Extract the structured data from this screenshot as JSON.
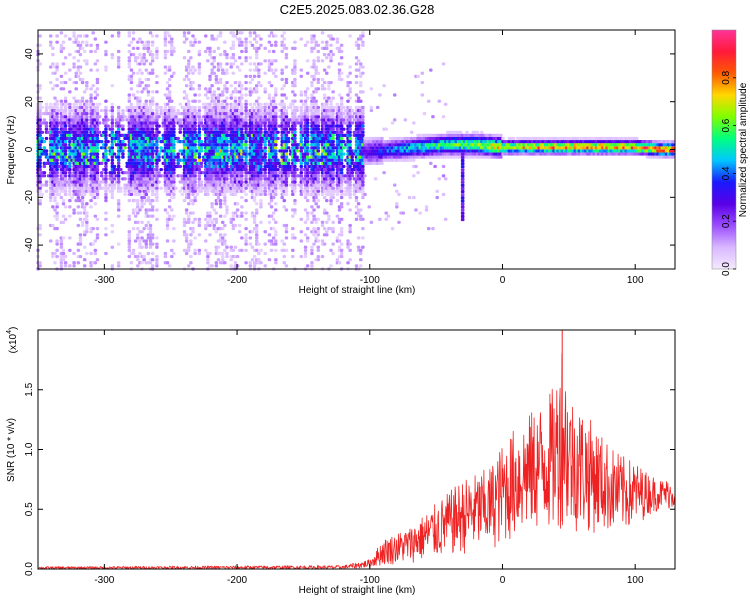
{
  "title": "C2E5.2025.083.02.36.G28",
  "chart_data": [
    {
      "type": "heatmap",
      "xlabel": "Height of straight line (km)",
      "ylabel": "Frequency (Hz)",
      "xlim": [
        -350,
        130
      ],
      "ylim": [
        -50,
        50
      ],
      "xticks": [
        -300,
        -200,
        -100,
        0,
        100
      ],
      "yticks": [
        -40,
        -20,
        0,
        20,
        40
      ],
      "colorbar": {
        "label": "Normalized spectral amplitude",
        "range": [
          0,
          1
        ],
        "ticks": [
          "0.0",
          "0.2",
          "0.4",
          "0.6",
          "0.8"
        ],
        "colors": [
          "#f4eaff",
          "#d9b8ff",
          "#9b4dff",
          "#5a00e6",
          "#1a1aff",
          "#00c8ff",
          "#00ff80",
          "#7fff00",
          "#ffd800",
          "#ff5a00",
          "#ff1a3a",
          "#ff3399"
        ]
      },
      "ridge": {
        "x": [
          -100,
          -80,
          -60,
          -40,
          -20,
          0,
          20,
          40,
          60,
          80,
          100,
          120,
          130
        ],
        "freq": [
          -1,
          0,
          1,
          2,
          2,
          1,
          1,
          1,
          1,
          1,
          1,
          0,
          0
        ],
        "amplitude": [
          0.3,
          0.45,
          0.55,
          0.6,
          0.65,
          0.75,
          0.8,
          0.85,
          0.85,
          0.85,
          0.85,
          0.9,
          0.9
        ]
      }
    },
    {
      "type": "line",
      "xlabel": "Height of straight line (km)",
      "ylabel": "SNR (10 * v/v)",
      "yscale_label": "(x10",
      "yscale_exp": "4",
      "xlim": [
        -350,
        130
      ],
      "ylim": [
        0,
        2.0
      ],
      "xticks": [
        -300,
        -200,
        -100,
        0,
        100
      ],
      "yticks": [
        "0.0",
        "0.5",
        "1.0",
        "1.5"
      ],
      "ytick_values": [
        0,
        0.5,
        1.0,
        1.5
      ],
      "color": "#ee2222",
      "envelope": {
        "x": [
          -350,
          -120,
          -100,
          -90,
          -70,
          -50,
          -30,
          -10,
          0,
          10,
          20,
          30,
          40,
          45,
          50,
          60,
          70,
          80,
          90,
          100,
          110,
          120,
          130
        ],
        "high": [
          0.02,
          0.03,
          0.08,
          0.25,
          0.35,
          0.55,
          0.75,
          0.85,
          1.05,
          1.2,
          1.3,
          1.4,
          1.55,
          1.98,
          1.5,
          1.35,
          1.2,
          1.05,
          0.95,
          0.9,
          0.8,
          0.75,
          0.75
        ],
        "low": [
          0.0,
          0.0,
          0.01,
          0.03,
          0.05,
          0.08,
          0.12,
          0.15,
          0.2,
          0.25,
          0.3,
          0.3,
          0.3,
          0.35,
          0.3,
          0.3,
          0.3,
          0.3,
          0.3,
          0.35,
          0.45,
          0.5,
          0.5
        ]
      }
    }
  ]
}
